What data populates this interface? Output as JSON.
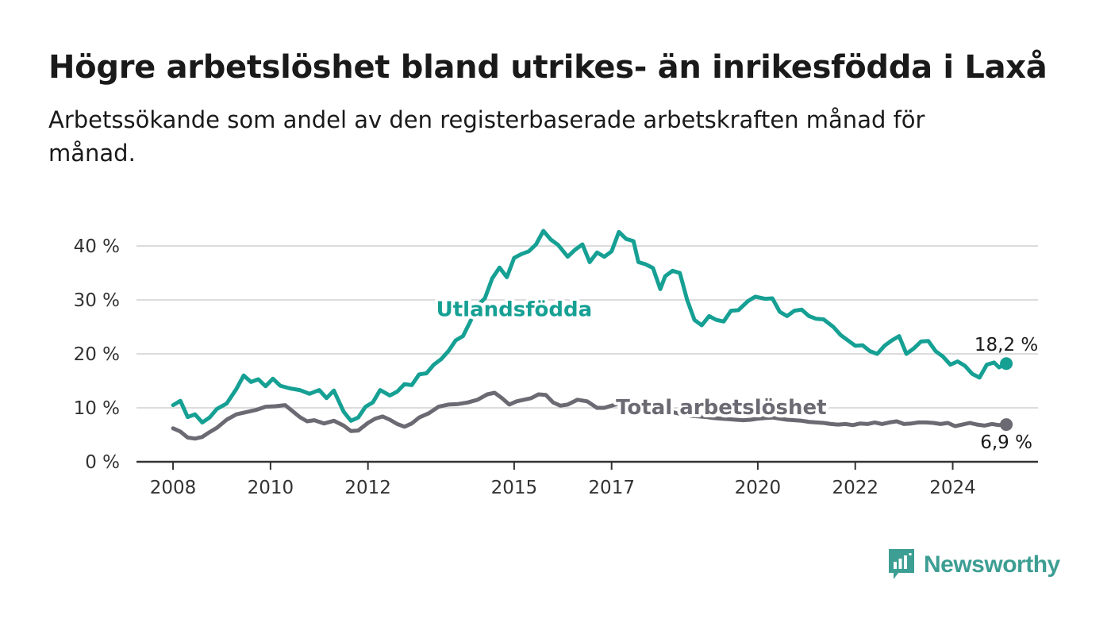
{
  "title": "Högre arbetslöshet bland utrikes- än inrikesfödda i Laxå",
  "subtitle": "Arbetssökande som andel av den registerbaserade arbetskraften månad för månad.",
  "brand": {
    "name": "Newsworthy",
    "icon": "newsworthy-logo-icon",
    "color": "#3d9e93"
  },
  "chart_data": {
    "type": "line",
    "y_ticks": [
      "0 %",
      "10 %",
      "20 %",
      "30 %",
      "40 %"
    ],
    "ylim": [
      0,
      40
    ],
    "x_ticks": [
      "2008",
      "2010",
      "2012",
      "2015",
      "2017",
      "2020",
      "2022",
      "2024"
    ],
    "x_tick_values": [
      2008,
      2010,
      2012,
      2015,
      2017,
      2020,
      2022,
      2024
    ],
    "xlim": [
      2007.25,
      2025.75
    ],
    "grid": true,
    "series": [
      {
        "name": "Utlandsfödda",
        "color": "#16a094",
        "end_label": "18,2 %",
        "points": [
          [
            2008.0,
            10.5
          ],
          [
            2008.15,
            11.3
          ],
          [
            2008.3,
            8.3
          ],
          [
            2008.45,
            8.8
          ],
          [
            2008.6,
            7.3
          ],
          [
            2008.75,
            8.2
          ],
          [
            2008.9,
            9.8
          ],
          [
            2009.1,
            10.8
          ],
          [
            2009.3,
            13.5
          ],
          [
            2009.45,
            16.0
          ],
          [
            2009.6,
            14.8
          ],
          [
            2009.75,
            15.3
          ],
          [
            2009.9,
            14.0
          ],
          [
            2010.05,
            15.4
          ],
          [
            2010.2,
            14.1
          ],
          [
            2010.4,
            13.6
          ],
          [
            2010.6,
            13.3
          ],
          [
            2010.8,
            12.6
          ],
          [
            2011.0,
            13.3
          ],
          [
            2011.15,
            11.8
          ],
          [
            2011.3,
            13.2
          ],
          [
            2011.5,
            9.3
          ],
          [
            2011.65,
            7.6
          ],
          [
            2011.8,
            8.2
          ],
          [
            2011.95,
            10.2
          ],
          [
            2012.1,
            11.0
          ],
          [
            2012.25,
            13.3
          ],
          [
            2012.45,
            12.3
          ],
          [
            2012.6,
            13.0
          ],
          [
            2012.75,
            14.4
          ],
          [
            2012.9,
            14.2
          ],
          [
            2013.05,
            16.2
          ],
          [
            2013.2,
            16.4
          ],
          [
            2013.35,
            18.0
          ],
          [
            2013.5,
            19.0
          ],
          [
            2013.65,
            20.5
          ],
          [
            2013.8,
            22.5
          ],
          [
            2013.95,
            23.3
          ],
          [
            2014.1,
            26.0
          ],
          [
            2014.25,
            29.0
          ],
          [
            2014.4,
            30.3
          ],
          [
            2014.55,
            34.0
          ],
          [
            2014.7,
            36.0
          ],
          [
            2014.85,
            34.2
          ],
          [
            2015.0,
            37.8
          ],
          [
            2015.15,
            38.5
          ],
          [
            2015.3,
            39.0
          ],
          [
            2015.45,
            40.3
          ],
          [
            2015.6,
            42.8
          ],
          [
            2015.75,
            41.2
          ],
          [
            2015.9,
            40.2
          ],
          [
            2016.1,
            38.0
          ],
          [
            2016.25,
            39.3
          ],
          [
            2016.4,
            40.3
          ],
          [
            2016.55,
            37.0
          ],
          [
            2016.7,
            38.8
          ],
          [
            2016.85,
            38.0
          ],
          [
            2017.0,
            39.0
          ],
          [
            2017.15,
            42.6
          ],
          [
            2017.3,
            41.3
          ],
          [
            2017.45,
            40.9
          ],
          [
            2017.55,
            37.0
          ],
          [
            2017.7,
            36.6
          ],
          [
            2017.85,
            35.9
          ],
          [
            2018.0,
            32.0
          ],
          [
            2018.1,
            34.4
          ],
          [
            2018.25,
            35.4
          ],
          [
            2018.4,
            35.0
          ],
          [
            2018.55,
            30.0
          ],
          [
            2018.7,
            26.3
          ],
          [
            2018.85,
            25.3
          ],
          [
            2019.0,
            27.0
          ],
          [
            2019.15,
            26.3
          ],
          [
            2019.3,
            26.0
          ],
          [
            2019.45,
            28.0
          ],
          [
            2019.6,
            28.1
          ],
          [
            2019.8,
            29.8
          ],
          [
            2019.95,
            30.6
          ],
          [
            2020.15,
            30.2
          ],
          [
            2020.3,
            30.3
          ],
          [
            2020.45,
            27.8
          ],
          [
            2020.6,
            27.0
          ],
          [
            2020.75,
            28.0
          ],
          [
            2020.9,
            28.2
          ],
          [
            2021.05,
            27.0
          ],
          [
            2021.2,
            26.5
          ],
          [
            2021.35,
            26.4
          ],
          [
            2021.55,
            25.0
          ],
          [
            2021.7,
            23.5
          ],
          [
            2021.85,
            22.5
          ],
          [
            2022.0,
            21.5
          ],
          [
            2022.15,
            21.6
          ],
          [
            2022.3,
            20.5
          ],
          [
            2022.45,
            20.0
          ],
          [
            2022.6,
            21.5
          ],
          [
            2022.75,
            22.5
          ],
          [
            2022.9,
            23.3
          ],
          [
            2023.05,
            20.0
          ],
          [
            2023.2,
            21.0
          ],
          [
            2023.35,
            22.3
          ],
          [
            2023.5,
            22.4
          ],
          [
            2023.65,
            20.5
          ],
          [
            2023.8,
            19.5
          ],
          [
            2023.95,
            18.0
          ],
          [
            2024.1,
            18.6
          ],
          [
            2024.25,
            17.8
          ],
          [
            2024.4,
            16.3
          ],
          [
            2024.55,
            15.6
          ],
          [
            2024.7,
            18.0
          ],
          [
            2024.85,
            18.4
          ],
          [
            2024.95,
            17.5
          ],
          [
            2025.1,
            18.2
          ]
        ]
      },
      {
        "name": "Total arbetslöshet",
        "color": "#6b6a73",
        "end_label": "6,9 %",
        "points": [
          [
            2008.0,
            6.2
          ],
          [
            2008.15,
            5.6
          ],
          [
            2008.3,
            4.5
          ],
          [
            2008.45,
            4.3
          ],
          [
            2008.6,
            4.6
          ],
          [
            2008.75,
            5.5
          ],
          [
            2008.9,
            6.3
          ],
          [
            2009.1,
            7.8
          ],
          [
            2009.3,
            8.8
          ],
          [
            2009.5,
            9.2
          ],
          [
            2009.7,
            9.6
          ],
          [
            2009.9,
            10.2
          ],
          [
            2010.1,
            10.3
          ],
          [
            2010.3,
            10.5
          ],
          [
            2010.45,
            9.4
          ],
          [
            2010.6,
            8.3
          ],
          [
            2010.75,
            7.5
          ],
          [
            2010.9,
            7.7
          ],
          [
            2011.1,
            7.1
          ],
          [
            2011.3,
            7.6
          ],
          [
            2011.5,
            6.7
          ],
          [
            2011.65,
            5.7
          ],
          [
            2011.8,
            5.8
          ],
          [
            2012.0,
            7.2
          ],
          [
            2012.15,
            8.0
          ],
          [
            2012.3,
            8.4
          ],
          [
            2012.45,
            7.8
          ],
          [
            2012.6,
            7.0
          ],
          [
            2012.75,
            6.5
          ],
          [
            2012.9,
            7.1
          ],
          [
            2013.05,
            8.2
          ],
          [
            2013.25,
            9.0
          ],
          [
            2013.45,
            10.2
          ],
          [
            2013.65,
            10.6
          ],
          [
            2013.85,
            10.7
          ],
          [
            2014.05,
            11.0
          ],
          [
            2014.25,
            11.5
          ],
          [
            2014.45,
            12.5
          ],
          [
            2014.6,
            12.8
          ],
          [
            2014.75,
            11.8
          ],
          [
            2014.9,
            10.6
          ],
          [
            2015.05,
            11.2
          ],
          [
            2015.2,
            11.5
          ],
          [
            2015.35,
            11.8
          ],
          [
            2015.5,
            12.5
          ],
          [
            2015.65,
            12.4
          ],
          [
            2015.8,
            11.0
          ],
          [
            2015.95,
            10.4
          ],
          [
            2016.1,
            10.6
          ],
          [
            2016.3,
            11.5
          ],
          [
            2016.5,
            11.2
          ],
          [
            2016.7,
            10.0
          ],
          [
            2016.85,
            10.0
          ],
          [
            2017.0,
            10.4
          ],
          [
            2017.15,
            10.8
          ],
          [
            2017.3,
            10.7
          ],
          [
            2017.45,
            10.9
          ],
          [
            2017.6,
            10.3
          ],
          [
            2017.75,
            10.1
          ],
          [
            2017.9,
            9.8
          ],
          [
            2018.05,
            9.6
          ],
          [
            2018.2,
            9.3
          ],
          [
            2018.35,
            9.0
          ],
          [
            2018.5,
            8.7
          ],
          [
            2018.65,
            8.5
          ],
          [
            2018.8,
            8.4
          ],
          [
            2018.95,
            8.3
          ],
          [
            2019.1,
            8.1
          ],
          [
            2019.25,
            8.0
          ],
          [
            2019.4,
            7.9
          ],
          [
            2019.55,
            7.8
          ],
          [
            2019.7,
            7.7
          ],
          [
            2019.85,
            7.8
          ],
          [
            2020.0,
            8.0
          ],
          [
            2020.15,
            8.1
          ],
          [
            2020.3,
            8.2
          ],
          [
            2020.45,
            8.0
          ],
          [
            2020.6,
            7.8
          ],
          [
            2020.75,
            7.7
          ],
          [
            2020.9,
            7.6
          ],
          [
            2021.05,
            7.4
          ],
          [
            2021.2,
            7.3
          ],
          [
            2021.35,
            7.2
          ],
          [
            2021.5,
            7.0
          ],
          [
            2021.65,
            6.9
          ],
          [
            2021.8,
            7.0
          ],
          [
            2021.95,
            6.8
          ],
          [
            2022.1,
            7.1
          ],
          [
            2022.25,
            7.0
          ],
          [
            2022.4,
            7.3
          ],
          [
            2022.55,
            7.0
          ],
          [
            2022.7,
            7.3
          ],
          [
            2022.85,
            7.5
          ],
          [
            2023.0,
            7.0
          ],
          [
            2023.15,
            7.1
          ],
          [
            2023.3,
            7.3
          ],
          [
            2023.45,
            7.3
          ],
          [
            2023.6,
            7.2
          ],
          [
            2023.75,
            7.0
          ],
          [
            2023.9,
            7.2
          ],
          [
            2024.05,
            6.6
          ],
          [
            2024.2,
            6.9
          ],
          [
            2024.35,
            7.2
          ],
          [
            2024.5,
            6.9
          ],
          [
            2024.65,
            6.7
          ],
          [
            2024.8,
            7.0
          ],
          [
            2024.95,
            6.8
          ],
          [
            2025.1,
            6.9
          ]
        ]
      }
    ]
  }
}
